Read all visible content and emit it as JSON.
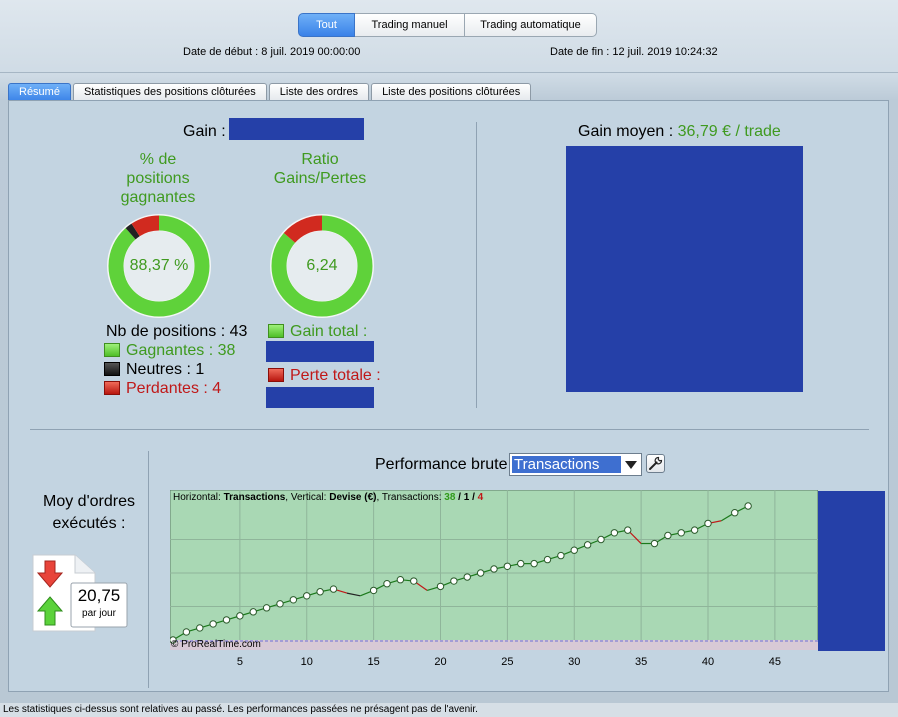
{
  "top_tabs": [
    {
      "label": "Tout",
      "active": true
    },
    {
      "label": "Trading manuel",
      "active": false
    },
    {
      "label": "Trading automatique",
      "active": false
    }
  ],
  "dates": {
    "start_label": "Date de début :",
    "start_value": "8 juil. 2019 00:00:00",
    "end_label": "Date de fin :",
    "end_value": "12 juil. 2019 10:24:32"
  },
  "tabs": [
    {
      "label": "Résumé",
      "active": true
    },
    {
      "label": "Statistiques des positions clôturées",
      "active": false
    },
    {
      "label": "Liste des ordres",
      "active": false
    },
    {
      "label": "Liste des positions clôturées",
      "active": false
    }
  ],
  "summary": {
    "gain_label": "Gain :",
    "win_pct": {
      "title": "% de positions gagnantes",
      "value": "88,37 %",
      "percent": 88.37,
      "neutral_percent": 2.33
    },
    "ratio": {
      "title": "Ratio Gains/Pertes",
      "value": "6,24",
      "gain_fraction": 0.862
    },
    "positions": {
      "total_label": "Nb de positions : 43",
      "winning_label": "Gagnantes : 38",
      "neutral_label": "Neutres : 1",
      "losing_label": "Perdantes : 4"
    },
    "total_gain_label": "Gain total :",
    "total_loss_label": "Perte totale :",
    "avg_gain_label": "Gain moyen :",
    "avg_gain_value": "36,79 € / trade",
    "avg_orders": {
      "title": "Moy d'ordres exécutés :",
      "value": "20,75",
      "unit": "par jour"
    }
  },
  "performance": {
    "title": "Performance brute",
    "selected_option": "Transactions",
    "info_prefix": "Horizontal:",
    "info_h": "Transactions",
    "info_mid": ", Vertical:",
    "info_v": "Devise (€)",
    "info_tx": ", Transactions:",
    "info_win": "38",
    "info_sep1": " / ",
    "info_neutral": "1",
    "info_sep2": " / ",
    "info_loss": "4",
    "copyright": "© ProRealTime.com"
  },
  "chart_data": {
    "type": "line",
    "xlabel": "",
    "ylabel": "",
    "x_ticks": [
      5,
      10,
      15,
      20,
      25,
      30,
      35,
      40,
      45
    ],
    "xlim": [
      0,
      48
    ],
    "ylim": [
      0,
      100
    ],
    "grid": true,
    "series": [
      {
        "x": [
          0,
          1,
          2,
          3,
          4,
          5,
          6,
          7,
          8,
          9,
          10,
          11,
          12,
          13,
          14,
          15,
          16,
          17,
          18,
          19,
          20,
          21,
          22,
          23,
          24,
          25,
          26,
          27,
          28,
          29,
          30,
          31,
          32,
          33,
          34,
          35,
          36,
          37,
          38,
          39,
          40,
          41,
          42,
          43
        ],
        "y": [
          0,
          6,
          9,
          12,
          15,
          18,
          21,
          24,
          27,
          30,
          33,
          36,
          38,
          35,
          33,
          37,
          42,
          45,
          44,
          37,
          40,
          44,
          47,
          50,
          53,
          55,
          57,
          57,
          60,
          63,
          67,
          71,
          75,
          80,
          82,
          72,
          72,
          78,
          80,
          82,
          87,
          89,
          95,
          100
        ],
        "outcomes": [
          "s",
          "w",
          "w",
          "w",
          "w",
          "w",
          "w",
          "w",
          "w",
          "w",
          "w",
          "w",
          "w",
          "l",
          "n",
          "w",
          "w",
          "w",
          "w",
          "l",
          "w",
          "w",
          "w",
          "w",
          "w",
          "w",
          "w",
          "w",
          "w",
          "w",
          "w",
          "w",
          "w",
          "w",
          "w",
          "l",
          "w",
          "w",
          "w",
          "w",
          "w",
          "l",
          "w",
          "w"
        ]
      }
    ],
    "colors": {
      "win": "#1c7a1c",
      "loss": "#c01818",
      "background": "#a9d8b4"
    }
  }
}
